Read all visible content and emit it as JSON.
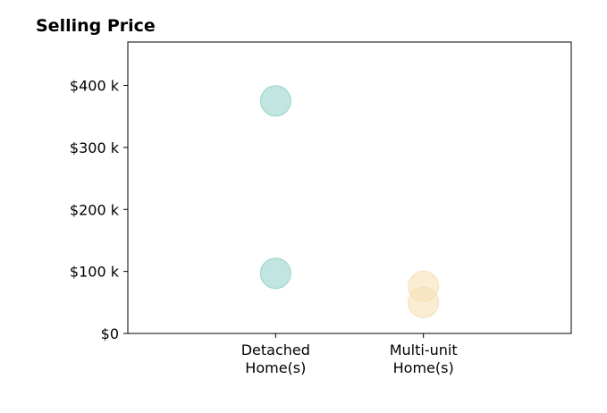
{
  "chart_data": {
    "type": "scatter",
    "title": "Selling Price",
    "xlabel": "",
    "ylabel": "",
    "categories": [
      "Detached\nHome(s)",
      "Multi-unit\nHome(s)"
    ],
    "x_range": [
      -1,
      2
    ],
    "ylim": [
      0,
      470000
    ],
    "yticks": [
      {
        "value": 0,
        "label": "$0"
      },
      {
        "value": 100000,
        "label": "$100 k"
      },
      {
        "value": 200000,
        "label": "$200 k"
      },
      {
        "value": 300000,
        "label": "$300 k"
      },
      {
        "value": 400000,
        "label": "$400 k"
      }
    ],
    "grid": false,
    "legend": "none",
    "series": [
      {
        "category_index": 0,
        "color": "#8fcfc8",
        "points": [
          375000,
          97000
        ]
      },
      {
        "category_index": 1,
        "color": "#f5deb0",
        "points": [
          76000,
          50000
        ]
      }
    ]
  }
}
